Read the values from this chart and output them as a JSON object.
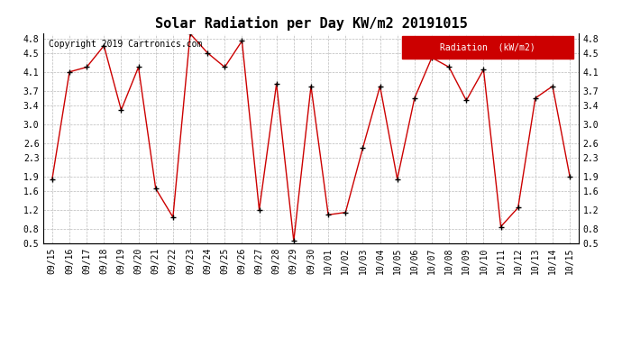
{
  "title": "Solar Radiation per Day KW/m2 20191015",
  "copyright": "Copyright 2019 Cartronics.com",
  "legend_label": "Radiation  (kW/m2)",
  "dates": [
    "09/15",
    "09/16",
    "09/17",
    "09/18",
    "09/19",
    "09/20",
    "09/21",
    "09/22",
    "09/23",
    "09/24",
    "09/25",
    "09/26",
    "09/27",
    "09/28",
    "09/29",
    "09/30",
    "10/01",
    "10/02",
    "10/03",
    "10/04",
    "10/05",
    "10/06",
    "10/07",
    "10/08",
    "10/09",
    "10/10",
    "10/11",
    "10/12",
    "10/13",
    "10/14",
    "10/15"
  ],
  "values": [
    1.85,
    4.1,
    4.2,
    4.65,
    3.3,
    4.2,
    1.65,
    1.05,
    4.9,
    4.5,
    4.2,
    4.75,
    1.2,
    3.85,
    0.55,
    3.8,
    1.1,
    1.15,
    2.5,
    3.8,
    1.85,
    3.55,
    4.4,
    4.2,
    3.5,
    4.15,
    0.85,
    1.25,
    3.55,
    3.8,
    1.9
  ],
  "ylim": [
    0.5,
    4.9
  ],
  "yticks": [
    0.5,
    0.8,
    1.2,
    1.6,
    1.9,
    2.3,
    2.6,
    3.0,
    3.4,
    3.7,
    4.1,
    4.5,
    4.8
  ],
  "line_color": "#cc0000",
  "marker_color": "#000000",
  "bg_color": "#ffffff",
  "grid_color": "#bbbbbb",
  "legend_bg": "#cc0000",
  "legend_text_color": "#ffffff",
  "title_fontsize": 11,
  "tick_fontsize": 7,
  "copyright_fontsize": 7,
  "legend_fontsize": 7
}
